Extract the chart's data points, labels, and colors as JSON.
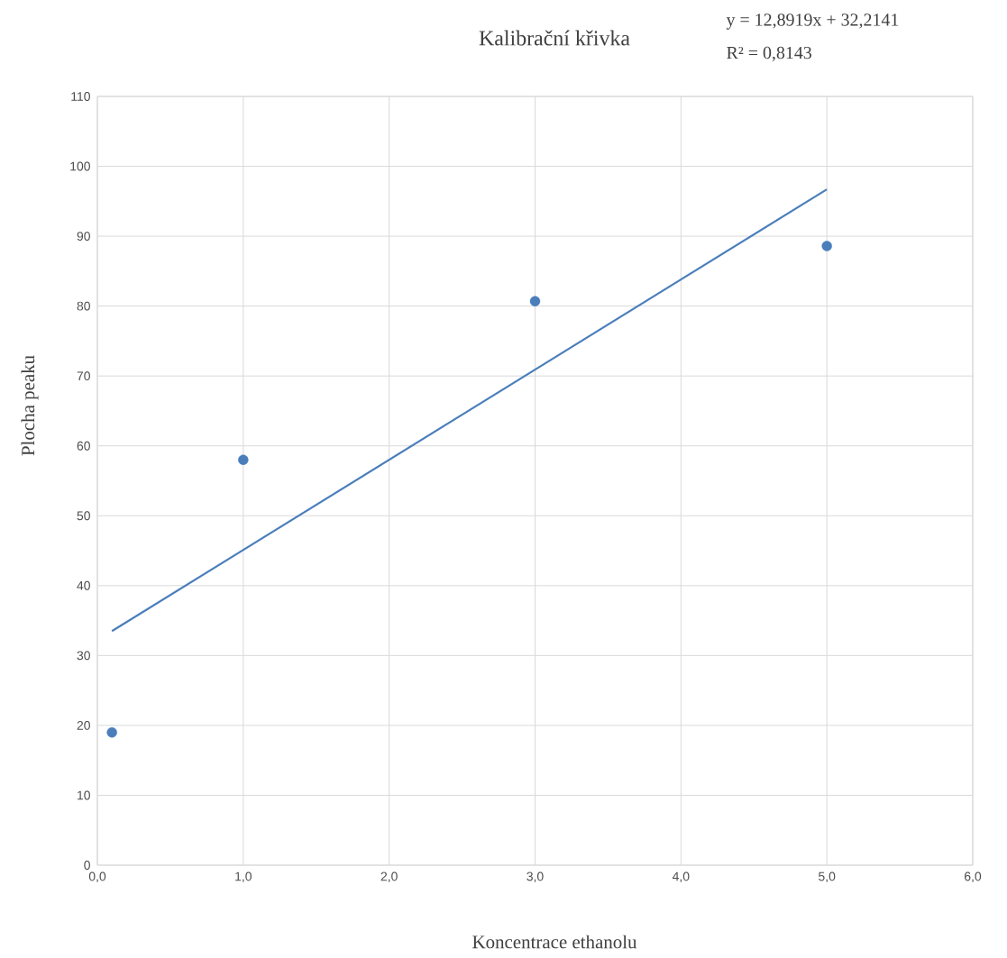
{
  "chart_data": {
    "type": "scatter",
    "title": "Kalibrační křivka",
    "xlabel": "Koncentrace ethanolu",
    "ylabel": "Plocha peaku",
    "annotations": [
      "y = 12,8919x + 32,2141",
      "R² = 0,8143"
    ],
    "xlim": [
      0,
      6
    ],
    "xticks": [
      {
        "value": 0,
        "label": "0,0"
      },
      {
        "value": 1,
        "label": "1,0"
      },
      {
        "value": 2,
        "label": "2,0"
      },
      {
        "value": 3,
        "label": "3,0"
      },
      {
        "value": 4,
        "label": "4,0"
      },
      {
        "value": 5,
        "label": "5,0"
      },
      {
        "value": 6,
        "label": "6,0"
      }
    ],
    "ylim": [
      0,
      110
    ],
    "yticks": [
      0,
      10,
      20,
      30,
      40,
      50,
      60,
      70,
      80,
      90,
      100,
      110
    ],
    "grid": true,
    "series": [
      {
        "color": "#4a7ebb",
        "marker": "circle",
        "x": [
          0.1,
          1,
          3,
          5
        ],
        "values": [
          19,
          58,
          80.7,
          88.6
        ]
      },
      {
        "type": "line",
        "marker": "none",
        "color": "#4a7ebb",
        "x": [
          0.1,
          5
        ],
        "values": [
          33.5,
          96.7
        ]
      }
    ]
  }
}
